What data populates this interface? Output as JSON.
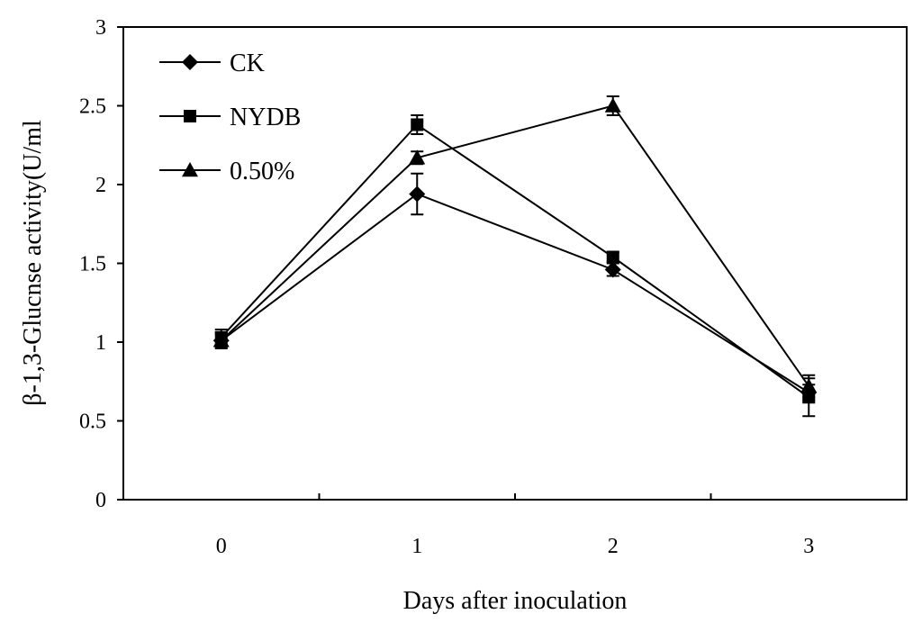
{
  "chart_data": {
    "type": "line",
    "title": "",
    "xlabel": "Days after inoculation",
    "ylabel": "β-1,3-Glucnse activity(U/ml",
    "categories": [
      "0",
      "1",
      "2",
      "3"
    ],
    "ylim": [
      0,
      3
    ],
    "yticks": [
      "0",
      "0.5",
      "1",
      "1.5",
      "2",
      "2.5",
      "3"
    ],
    "grid": false,
    "legend_position": "top-left",
    "series": [
      {
        "name": "CK",
        "marker": "diamond",
        "values": [
          1.01,
          1.94,
          1.46,
          0.68
        ],
        "errors": [
          0.05,
          0.13,
          0.04,
          0.05
        ]
      },
      {
        "name": "NYDB",
        "marker": "square",
        "values": [
          1.03,
          2.38,
          1.54,
          0.65
        ],
        "errors": [
          0.05,
          0.06,
          0.03,
          0.12
        ]
      },
      {
        "name": "0.50%",
        "marker": "triangle",
        "values": [
          1.01,
          2.17,
          2.5,
          0.72
        ],
        "errors": [
          0.04,
          0.04,
          0.06,
          0.07
        ]
      }
    ]
  }
}
